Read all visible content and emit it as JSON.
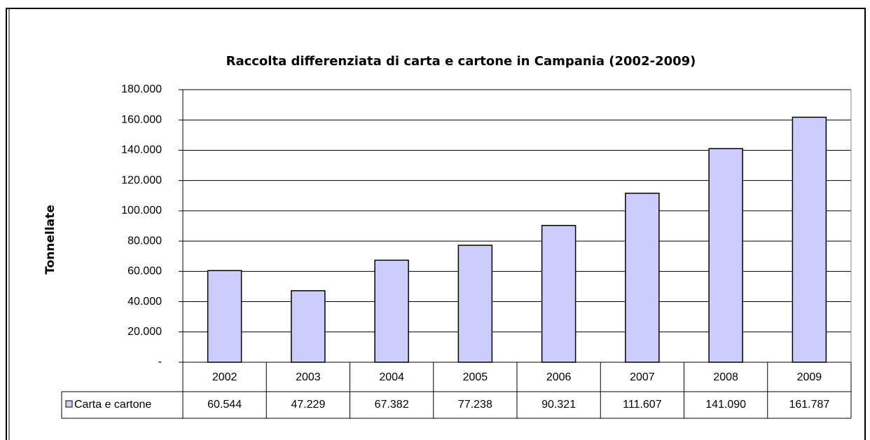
{
  "chart_data": {
    "type": "bar",
    "title": "Raccolta differenziata di carta e cartone in Campania (2002-2009)",
    "y_label": "Tonnellate",
    "categories": [
      "2002",
      "2003",
      "2004",
      "2005",
      "2006",
      "2007",
      "2008",
      "2009"
    ],
    "series": [
      {
        "name": "Carta e cartone",
        "color": "#ccccff",
        "values": [
          60544,
          47229,
          67382,
          77238,
          90321,
          111607,
          141090,
          161787
        ],
        "value_labels": [
          "60.544",
          "47.229",
          "67.382",
          "77.238",
          "90.321",
          "111.607",
          "141.090",
          "161.787"
        ]
      }
    ],
    "ylim": [
      0,
      180000
    ],
    "yticks": [
      {
        "value": 0,
        "label": "-"
      },
      {
        "value": 20000,
        "label": "20.000"
      },
      {
        "value": 40000,
        "label": "40.000"
      },
      {
        "value": 60000,
        "label": "60.000"
      },
      {
        "value": 80000,
        "label": "80.000"
      },
      {
        "value": 100000,
        "label": "100.000"
      },
      {
        "value": 120000,
        "label": "120.000"
      },
      {
        "value": 140000,
        "label": "140.000"
      },
      {
        "value": 160000,
        "label": "160.000"
      },
      {
        "value": 180000,
        "label": "180.000"
      }
    ],
    "grid": true
  }
}
